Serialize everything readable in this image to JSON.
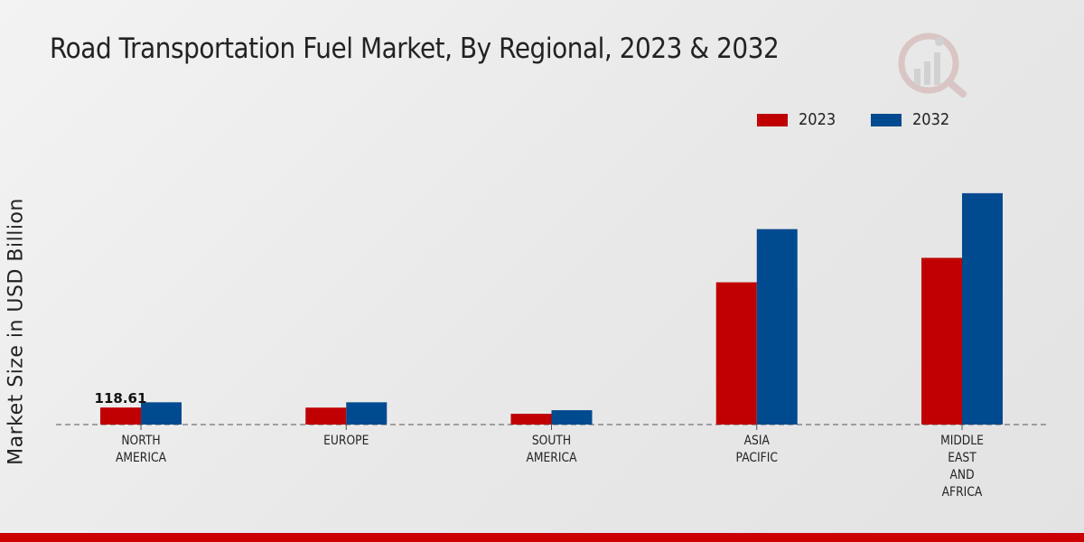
{
  "title": "Road Transportation Fuel Market, By Regional, 2023 & 2032",
  "colors": {
    "series_2023": "#c00000",
    "series_2032": "#004a8f",
    "brand_bar": "#cc0000"
  },
  "logo_icon": "market-research-logo-icon",
  "chart_data": {
    "type": "bar",
    "title": "Road Transportation Fuel Market, By Regional, 2023 & 2032",
    "xlabel": "",
    "ylabel": "Market Size in USD Billion",
    "categories": [
      [
        "NORTH",
        "AMERICA"
      ],
      [
        "EUROPE"
      ],
      [
        "SOUTH",
        "AMERICA"
      ],
      [
        "ASIA",
        "PACIFIC"
      ],
      [
        "MIDDLE",
        "EAST",
        "AND",
        "AFRICA"
      ]
    ],
    "series": [
      {
        "name": "2023",
        "values": [
          118.61,
          118,
          75,
          990,
          1160
        ]
      },
      {
        "name": "2032",
        "values": [
          155,
          155,
          100,
          1360,
          1610
        ]
      }
    ],
    "data_labels": [
      {
        "series": 0,
        "index": 0,
        "text": "118.61"
      }
    ],
    "ylim": [
      0,
      2200
    ],
    "grid": false,
    "legend": "top-right"
  }
}
